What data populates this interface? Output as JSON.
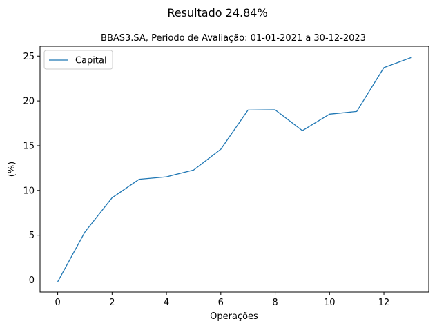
{
  "chart_data": {
    "type": "line",
    "title": "Resultado 24.84%",
    "subtitle": "BBAS3.SA, Periodo de Avaliação: 01-01-2021 a 30-12-2023",
    "xlabel": "Operações",
    "ylabel": "(%)",
    "xlim": [
      -0.65,
      13.65
    ],
    "ylim": [
      -1.35,
      26.1
    ],
    "xticks": [
      0,
      2,
      4,
      6,
      8,
      10,
      12
    ],
    "yticks": [
      0,
      5,
      10,
      15,
      20,
      25
    ],
    "grid": false,
    "legend_position": "top-left",
    "series": [
      {
        "name": "Capital",
        "color": "#1f77b4",
        "x": [
          0,
          1,
          2,
          3,
          4,
          5,
          6,
          7,
          8,
          9,
          10,
          11,
          12,
          13
        ],
        "values": [
          -0.2,
          5.35,
          9.18,
          11.25,
          11.52,
          12.28,
          14.6,
          18.98,
          19.0,
          16.68,
          18.52,
          18.82,
          23.72,
          24.84
        ]
      }
    ]
  }
}
